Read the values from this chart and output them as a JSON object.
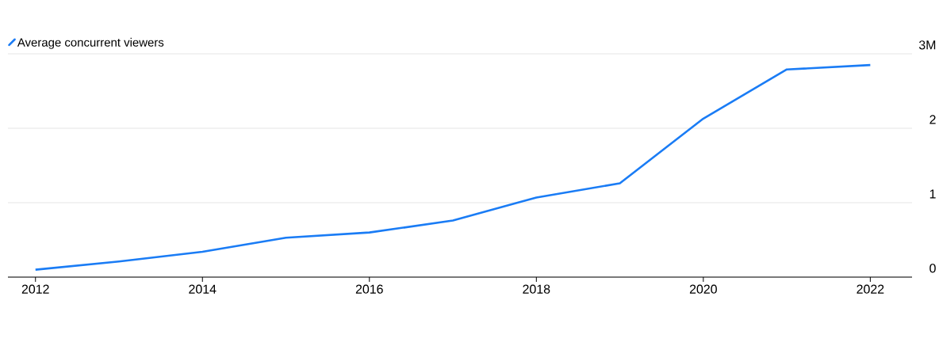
{
  "chart_data": {
    "type": "line",
    "x": [
      2012,
      2013,
      2014,
      2015,
      2016,
      2017,
      2018,
      2019,
      2020,
      2021,
      2022
    ],
    "series": [
      {
        "name": "Average concurrent viewers",
        "color": "#1a7cf5",
        "values": [
          0.1,
          0.21,
          0.34,
          0.53,
          0.6,
          0.76,
          1.07,
          1.26,
          2.13,
          2.79,
          2.85
        ]
      }
    ],
    "xlim": [
      2011.67,
      2022.5
    ],
    "xticks": [
      2012,
      2014,
      2016,
      2018,
      2020,
      2022
    ],
    "ylim": [
      0,
      3
    ],
    "yticks": [
      0,
      1,
      2,
      {
        "value": 3,
        "label": "3M"
      }
    ],
    "grid": "y",
    "legend": "top left",
    "marker": "none",
    "line_style": "solid"
  }
}
